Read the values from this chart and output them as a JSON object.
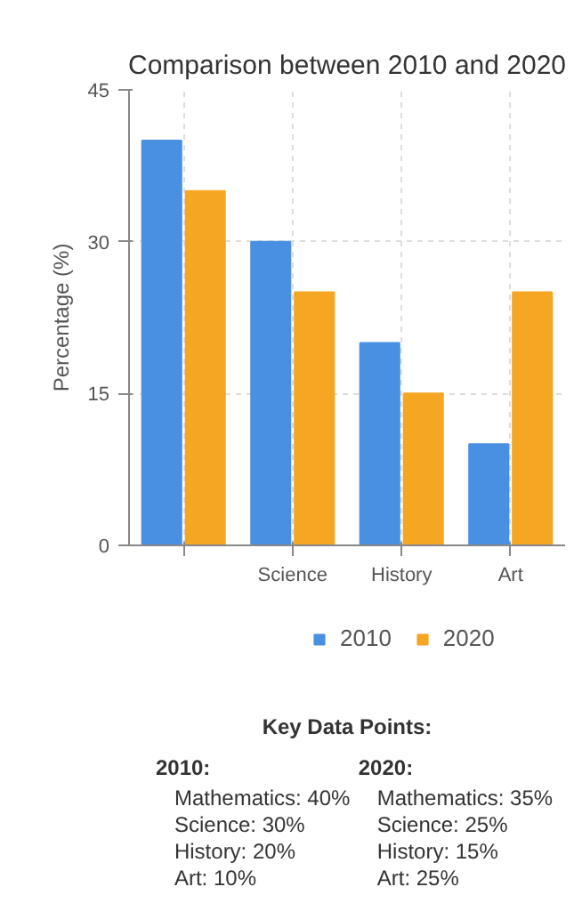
{
  "chart_data": {
    "type": "bar",
    "title": "Comparison between 2010 and 2020",
    "ylabel": "Percentage (%)",
    "categories": [
      null,
      "Science",
      "History",
      "Art"
    ],
    "series": [
      {
        "name": "2010",
        "color": "#4a90e2",
        "values": [
          40,
          30,
          20,
          10
        ]
      },
      {
        "name": "2020",
        "color": "#f5a623",
        "values": [
          35,
          25,
          15,
          25
        ]
      }
    ],
    "ylim": [
      0,
      45
    ],
    "yticks": [
      0,
      15,
      30,
      45
    ],
    "grid": true,
    "legend": "bottom",
    "annotations": [
      "Key Data Points:",
      "2010:",
      "Mathematics: 40%",
      "Science: 30%",
      "History: 20%",
      "Art: 10%",
      "2020:",
      "Mathematics: 35%",
      "Science: 25%",
      "History: 15%",
      "Art: 25%"
    ]
  }
}
